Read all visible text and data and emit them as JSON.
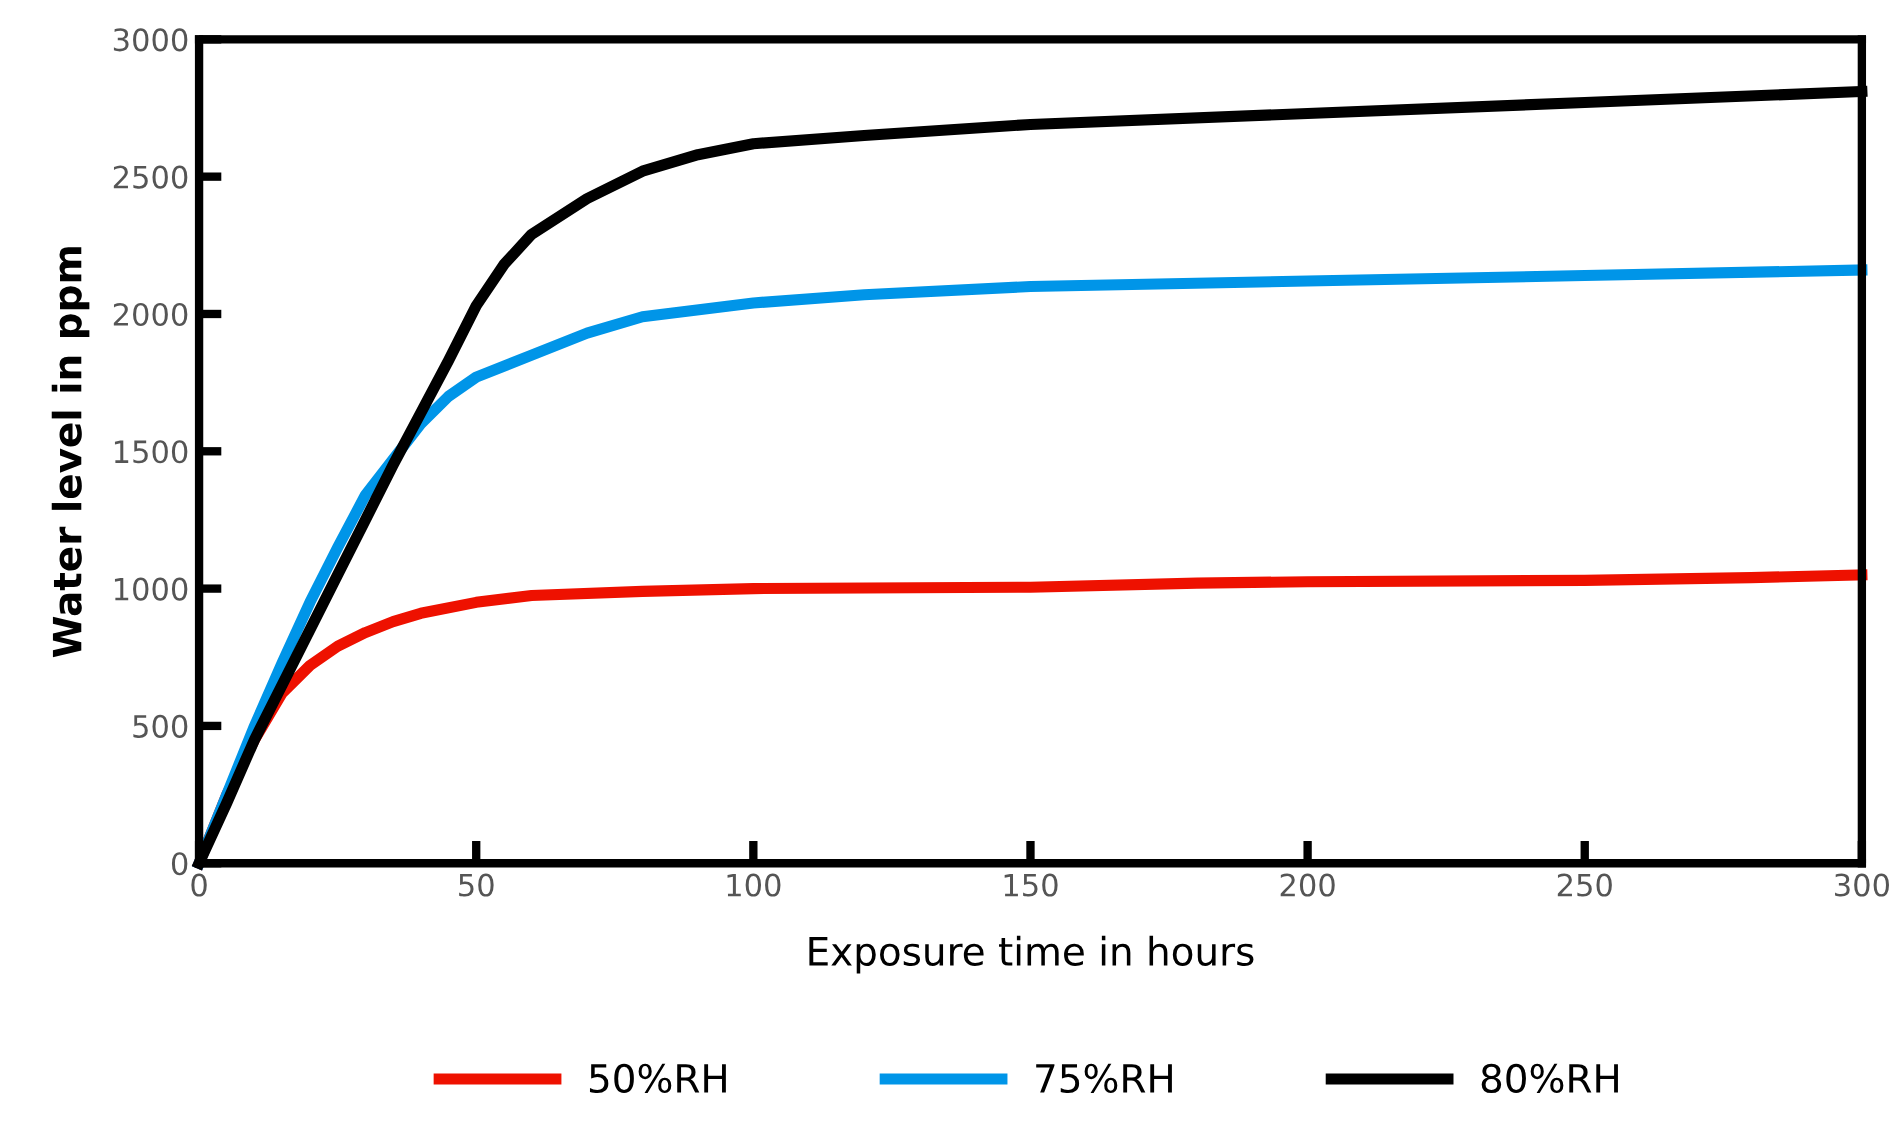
{
  "chart_data": {
    "type": "line",
    "xlabel": "Exposure time in hours",
    "ylabel": "Water level in ppm",
    "xlim": [
      0,
      300
    ],
    "xticks": [
      0,
      50,
      100,
      150,
      200,
      250,
      300
    ],
    "ylim": [
      0,
      3000
    ],
    "yticks": [
      0,
      500,
      1000,
      1500,
      2000,
      2500,
      3000
    ],
    "grid": false,
    "legend": "bottom",
    "marker": "none",
    "line_style": "solid",
    "series": [
      {
        "name": "50%RH",
        "color": "#ee1100",
        "x": [
          0,
          5,
          10,
          15,
          20,
          25,
          30,
          35,
          40,
          50,
          60,
          80,
          100,
          150,
          180,
          200,
          250,
          280,
          300
        ],
        "values": [
          0,
          250,
          450,
          620,
          720,
          790,
          840,
          880,
          910,
          950,
          975,
          990,
          1000,
          1005,
          1020,
          1025,
          1030,
          1040,
          1050
        ]
      },
      {
        "name": "75%RH",
        "color": "#0095e8",
        "x": [
          0,
          5,
          10,
          15,
          20,
          25,
          30,
          35,
          40,
          45,
          50,
          60,
          70,
          80,
          100,
          120,
          150,
          200,
          250,
          300
        ],
        "values": [
          0,
          250,
          500,
          730,
          950,
          1150,
          1340,
          1470,
          1600,
          1700,
          1770,
          1850,
          1930,
          1990,
          2040,
          2070,
          2100,
          2120,
          2140,
          2160
        ]
      },
      {
        "name": "80%RH",
        "color": "#000000",
        "x": [
          0,
          5,
          10,
          15,
          20,
          25,
          30,
          35,
          40,
          45,
          50,
          55,
          60,
          70,
          80,
          90,
          100,
          120,
          150,
          200,
          250,
          300
        ],
        "values": [
          0,
          220,
          450,
          650,
          850,
          1050,
          1250,
          1450,
          1640,
          1830,
          2030,
          2180,
          2290,
          2420,
          2520,
          2580,
          2620,
          2650,
          2690,
          2730,
          2770,
          2810
        ]
      }
    ]
  }
}
